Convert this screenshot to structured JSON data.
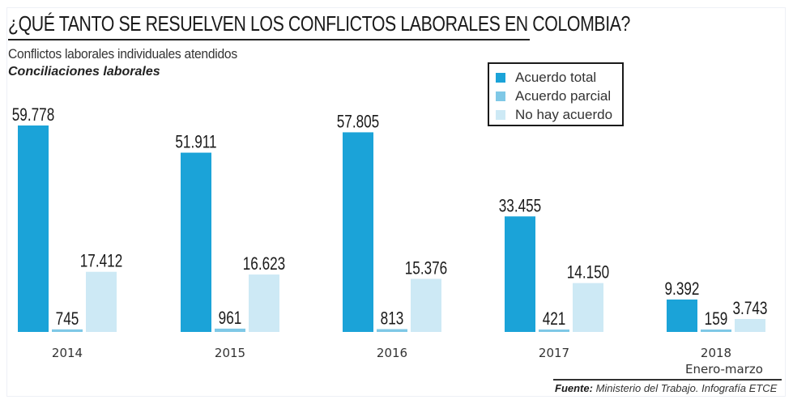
{
  "header": {
    "title": "¿QUÉ TANTO SE RESUELVEN LOS CONFLICTOS LABORALES EN COLOMBIA?",
    "subtitle": "Conflictos laborales individuales atendidos",
    "subtitle2": "Conciliaciones laborales"
  },
  "footer": {
    "source_label": "Fuente:",
    "source_text": "Ministerio del Trabajo. Infografía ETCE"
  },
  "colors": {
    "acuerdo_total": "#1ba3d8",
    "acuerdo_parcial": "#7fc8e6",
    "no_hay_acuerdo": "#cde9f5",
    "text": "#1a1a1a"
  },
  "chart_data": {
    "type": "bar",
    "title": "¿QUÉ TANTO SE RESUELVEN LOS CONFLICTOS LABORALES EN COLOMBIA?",
    "xlabel": "",
    "ylabel": "",
    "ylim": [
      0,
      60000
    ],
    "grid": false,
    "legend_position": "top-right",
    "categories": [
      "2014",
      "2015",
      "2016",
      "2017",
      "2018"
    ],
    "category_sublabels": [
      "",
      "",
      "",
      "",
      "Enero-marzo"
    ],
    "series": [
      {
        "name": "Acuerdo total",
        "color": "#1ba3d8",
        "values": [
          59778,
          51911,
          57805,
          33455,
          9392
        ],
        "labels": [
          "59.778",
          "51.911",
          "57.805",
          "33.455",
          "9.392"
        ]
      },
      {
        "name": "Acuerdo parcial",
        "color": "#7fc8e6",
        "values": [
          745,
          961,
          813,
          421,
          159
        ],
        "labels": [
          "745",
          "961",
          "813",
          "421",
          "159"
        ]
      },
      {
        "name": "No hay acuerdo",
        "color": "#cde9f5",
        "values": [
          17412,
          16623,
          15376,
          14150,
          3743
        ],
        "labels": [
          "17.412",
          "16.623",
          "15.376",
          "14.150",
          "3.743"
        ]
      }
    ]
  }
}
